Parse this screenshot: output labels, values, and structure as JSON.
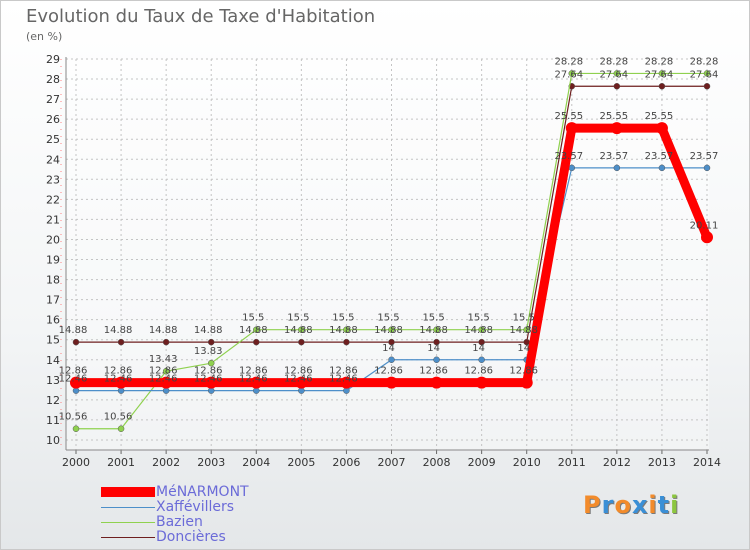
{
  "title": "Evolution du Taux de Taxe d'Habitation",
  "unit": "(en %)",
  "logo": {
    "text": "Proxiti",
    "letters": [
      "P",
      "r",
      "o",
      "x",
      "i",
      "t",
      "i"
    ],
    "colors": [
      "#f28b2b",
      "#3a8fd6",
      "#f28b2b",
      "#3a8fd6",
      "#f28b2b",
      "#3a8fd6",
      "#8cc63f"
    ]
  },
  "chart_data": {
    "type": "line",
    "title": "Evolution du Taux de Taxe d'Habitation",
    "ylabel": "(en %)",
    "xlabel": "",
    "ylim": [
      9.5,
      29
    ],
    "y_ticks": [
      10,
      11,
      12,
      13,
      14,
      15,
      16,
      17,
      18,
      19,
      20,
      21,
      22,
      23,
      24,
      25,
      26,
      27,
      28,
      29
    ],
    "categories": [
      "2000",
      "2001",
      "2002",
      "2003",
      "2004",
      "2005",
      "2006",
      "2007",
      "2008",
      "2009",
      "2010",
      "2011",
      "2012",
      "2013",
      "2014"
    ],
    "legend_position": "bottom-left",
    "series": [
      {
        "name": "Doncières",
        "color": "#6e1f1f",
        "values": [
          14.88,
          14.88,
          14.88,
          14.88,
          14.88,
          14.88,
          14.88,
          14.88,
          14.88,
          14.88,
          14.88,
          27.64,
          27.64,
          27.64,
          27.64
        ],
        "labels": [
          "14.88",
          "14.88",
          "14.88",
          "14.88",
          "14.88",
          "14.88",
          "14.88",
          "14.88",
          "14.88",
          "14.88",
          "14.88",
          "27.64",
          "27.64",
          "27.64",
          "27.64"
        ]
      },
      {
        "name": "Bazien",
        "color": "#8fd14f",
        "values": [
          10.56,
          10.56,
          13.43,
          13.83,
          15.5,
          15.5,
          15.5,
          15.5,
          15.5,
          15.5,
          15.5,
          28.28,
          28.28,
          28.28,
          28.28
        ],
        "labels": [
          "10.56",
          "10.56",
          "13.43",
          "13.83",
          "15.5",
          "15.5",
          "15.5",
          "15.5",
          "15.5",
          "15.5",
          "15.5",
          "28.28",
          "28.28",
          "28.28",
          "28.28"
        ]
      },
      {
        "name": "Xaffévillers",
        "color": "#4d8fc9",
        "values": [
          12.46,
          12.46,
          12.46,
          12.46,
          12.46,
          12.46,
          12.46,
          14,
          14,
          14,
          14,
          23.57,
          23.57,
          23.57,
          23.57
        ],
        "labels": [
          "12.46",
          "12.46",
          "12.46",
          "12.46",
          "12.46",
          "12.46",
          "12.46",
          "14",
          "14",
          "14",
          "14",
          "23.57",
          "23.57",
          "23.57",
          "23.57"
        ]
      },
      {
        "name": "MéNARMONT",
        "color": "#ff0000",
        "values": [
          12.86,
          12.86,
          12.86,
          12.86,
          12.86,
          12.86,
          12.86,
          12.86,
          12.86,
          12.86,
          12.86,
          25.55,
          25.55,
          25.55,
          20.11
        ],
        "labels": [
          "12.86",
          "12.86",
          "12.86",
          "12.86",
          "12.86",
          "12.86",
          "12.86",
          "12.86",
          "12.86",
          "12.86",
          "12.86",
          "25.55",
          "25.55",
          "25.55",
          "20.11"
        ]
      }
    ]
  },
  "legend": [
    {
      "label": "MéNARMONT"
    },
    {
      "label": "Xaffévillers"
    },
    {
      "label": "Bazien"
    },
    {
      "label": "Doncières"
    }
  ]
}
